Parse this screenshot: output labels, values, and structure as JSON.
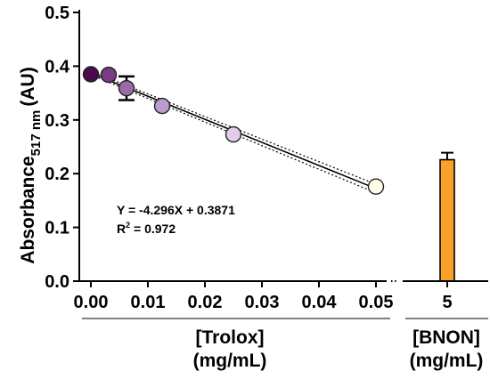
{
  "chart_data": [
    {
      "type": "scatter",
      "panel": "trolox",
      "ylabel": {
        "main": "Absorbance",
        "sub": "517 nm",
        "unit": "(AU)"
      },
      "xlabel_line1": "[Trolox]",
      "xlabel_line2": "(mg/mL)",
      "ylim": [
        0,
        0.5
      ],
      "xlim": [
        0,
        0.05
      ],
      "yticks": [
        "0.0",
        "0.1",
        "0.2",
        "0.3",
        "0.4",
        "0.5"
      ],
      "xticks": [
        "0.00",
        "0.01",
        "0.02",
        "0.03",
        "0.04",
        "0.05"
      ],
      "points": [
        {
          "x": 0.0,
          "y": 0.385,
          "err": 0,
          "color": "#4a0a4e"
        },
        {
          "x": 0.003125,
          "y": 0.384,
          "err": 0,
          "color": "#7b3a86"
        },
        {
          "x": 0.00625,
          "y": 0.359,
          "err": 0.022,
          "color": "#9c6aa9"
        },
        {
          "x": 0.0125,
          "y": 0.326,
          "err": 0,
          "color": "#bb9ccb"
        },
        {
          "x": 0.025,
          "y": 0.273,
          "err": 0,
          "color": "#e2cde6"
        },
        {
          "x": 0.05,
          "y": 0.176,
          "err": 0,
          "color": "#fffde6"
        }
      ],
      "regression": {
        "slope": -4.296,
        "intercept": 0.3871,
        "equation": "Y = -4.296X + 0.3871",
        "r2_prefix": "R",
        "r2_sup": "2",
        "r2_value": " = 0.972",
        "ci_band": 0.008
      },
      "grid": false
    },
    {
      "type": "bar",
      "panel": "bnon",
      "categories": [
        "5"
      ],
      "values": [
        0.226
      ],
      "errors": [
        0.013
      ],
      "color": "#f9a12b",
      "xlabel_line1": "[BNON]",
      "xlabel_line2": "(mg/mL)"
    }
  ]
}
